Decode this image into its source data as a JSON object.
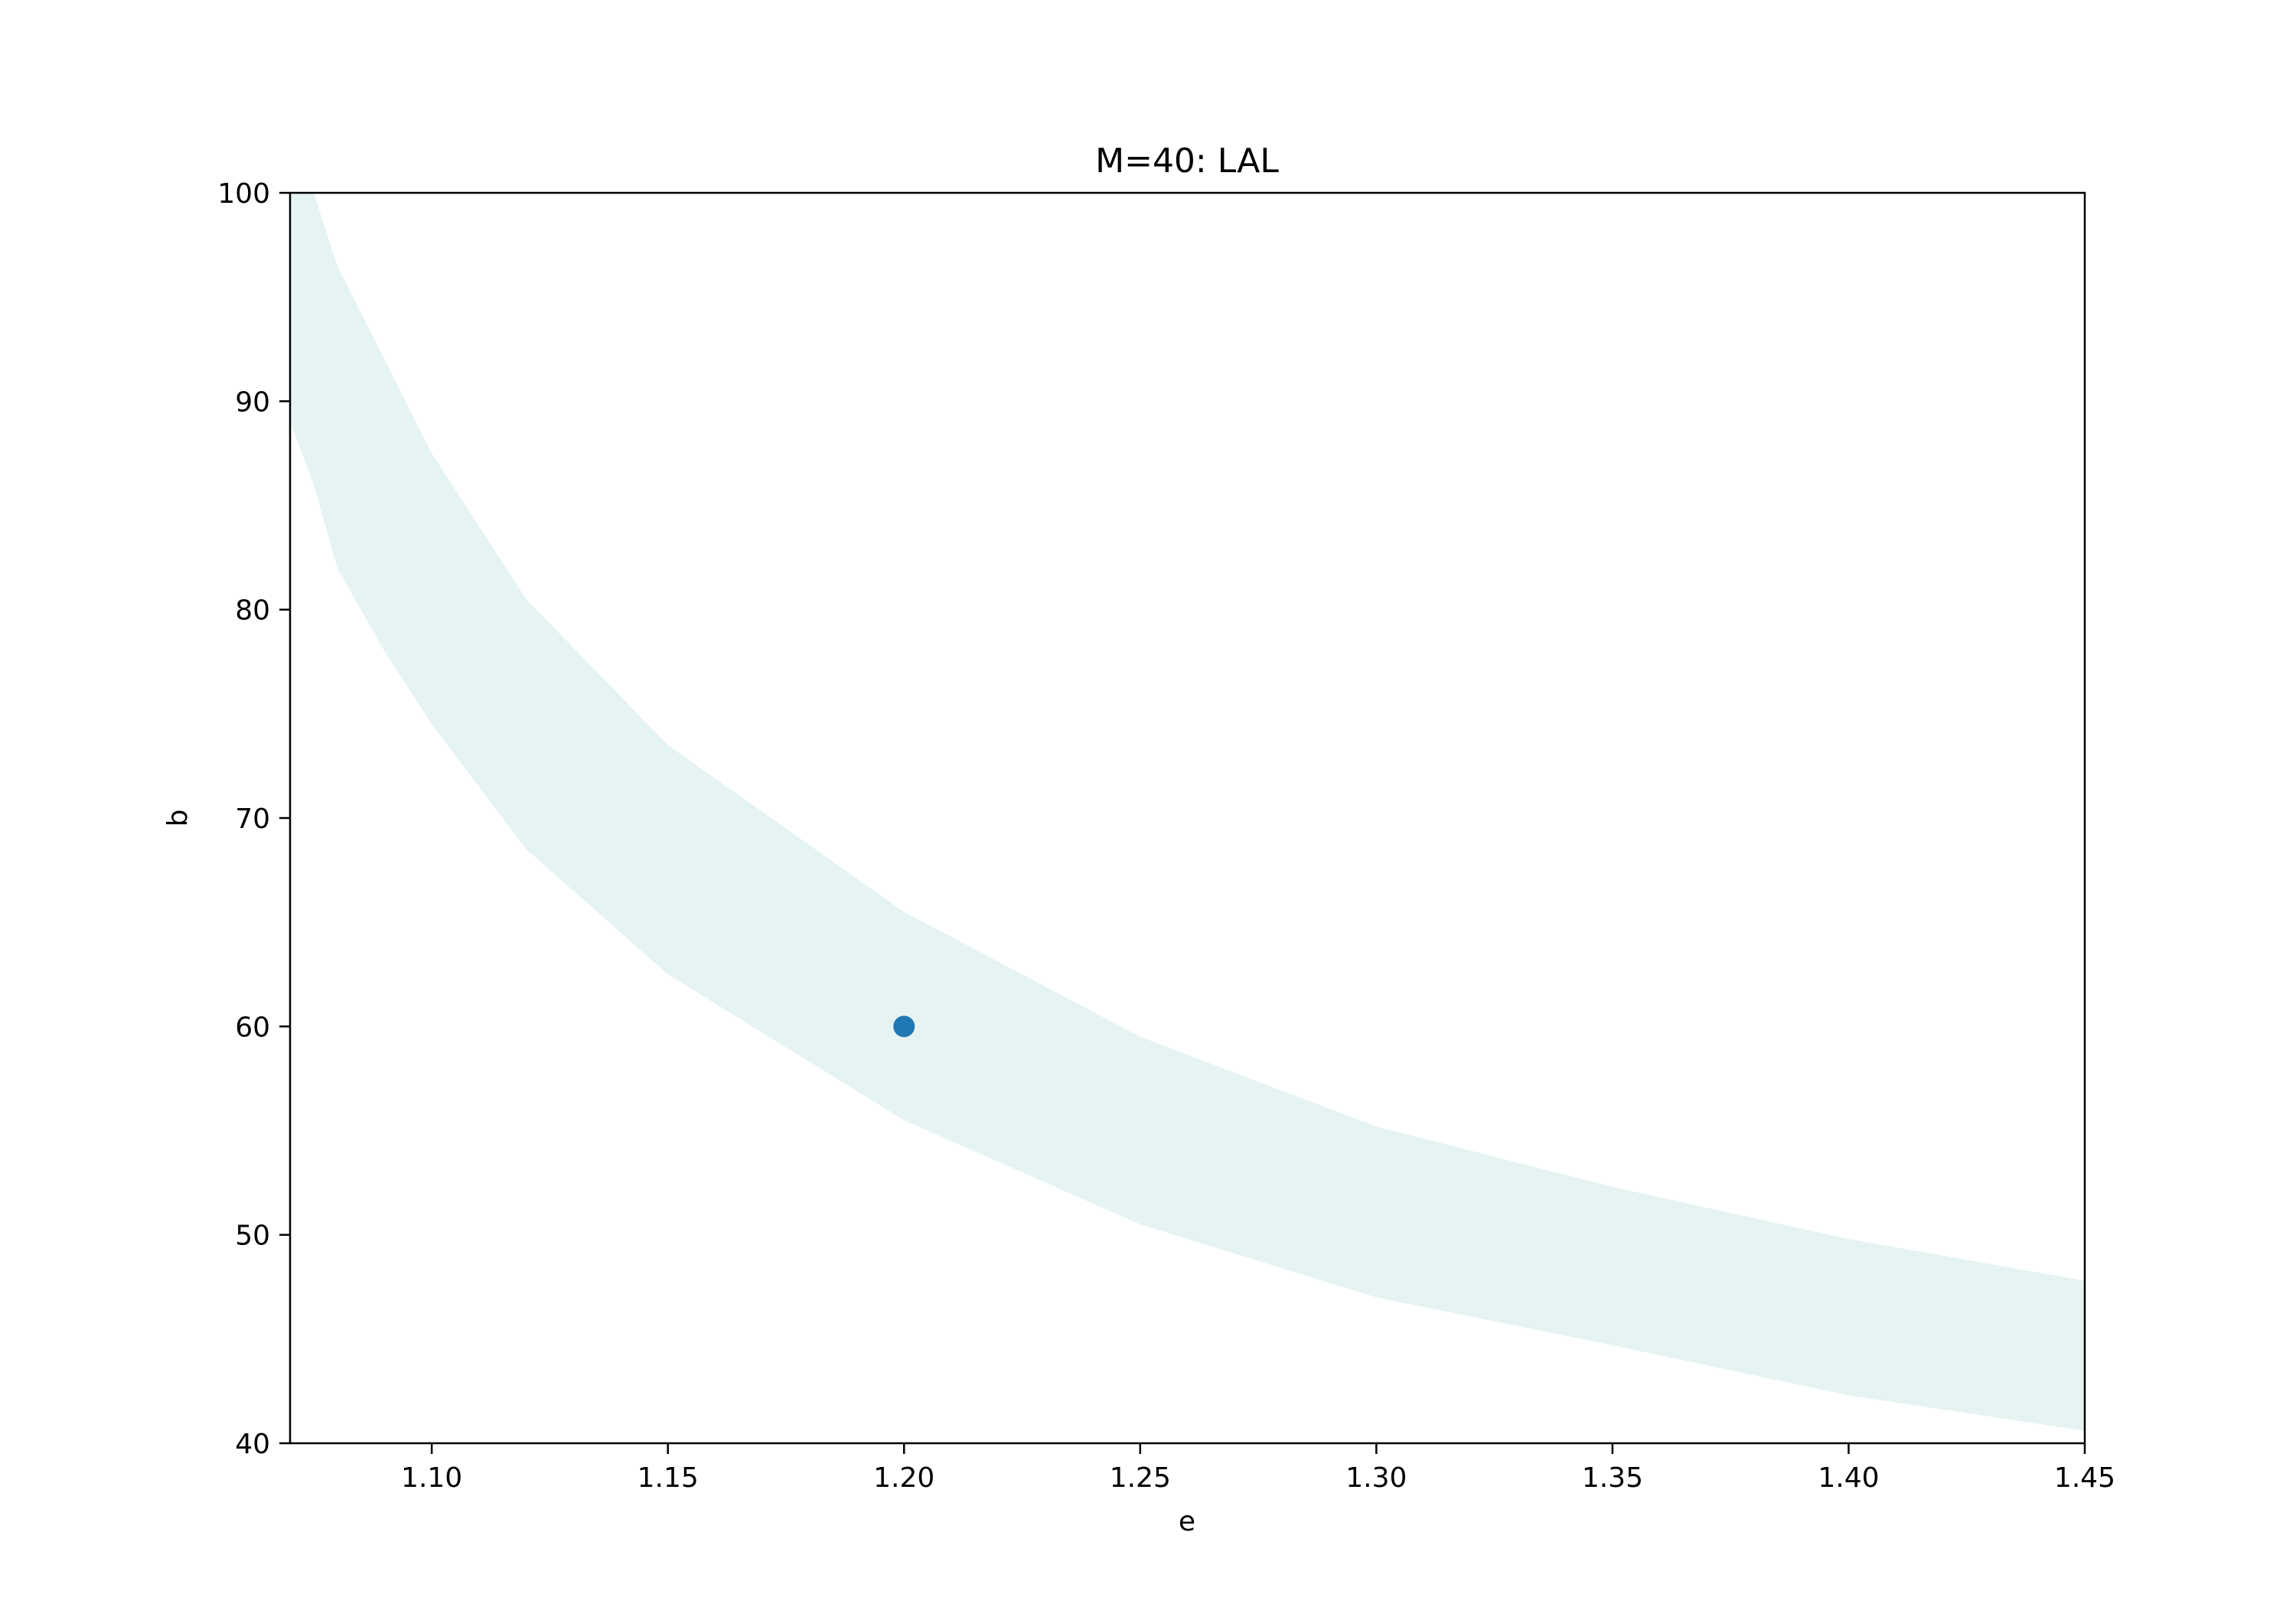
{
  "chart_data": {
    "type": "scatter",
    "title": "M=40: LAL",
    "xlabel": "e",
    "ylabel": "b",
    "xlim": [
      1.07,
      1.45
    ],
    "ylim": [
      40,
      100
    ],
    "xticks": [
      1.1,
      1.15,
      1.2,
      1.25,
      1.3,
      1.35,
      1.4,
      1.45
    ],
    "xtick_labels": [
      "1.10",
      "1.15",
      "1.20",
      "1.25",
      "1.30",
      "1.35",
      "1.40",
      "1.45"
    ],
    "yticks": [
      40,
      50,
      60,
      70,
      80,
      90,
      100
    ],
    "ytick_labels": [
      "40",
      "50",
      "60",
      "70",
      "80",
      "90",
      "100"
    ],
    "grid": false,
    "band": {
      "color": "#e5f3f3",
      "x": [
        1.07,
        1.075,
        1.08,
        1.09,
        1.1,
        1.12,
        1.15,
        1.2,
        1.25,
        1.3,
        1.35,
        1.4,
        1.45
      ],
      "upper": [
        100,
        100,
        96.5,
        92,
        87.5,
        80.5,
        73.5,
        65.5,
        59.5,
        55.2,
        52.3,
        49.8,
        47.8
      ],
      "lower": [
        89,
        86,
        82,
        78,
        74.5,
        68.5,
        62.5,
        55.5,
        50.5,
        47.0,
        44.7,
        42.3,
        40.6
      ]
    },
    "points": [
      {
        "x": 1.2,
        "y": 60,
        "color": "#1f77b4"
      }
    ]
  }
}
